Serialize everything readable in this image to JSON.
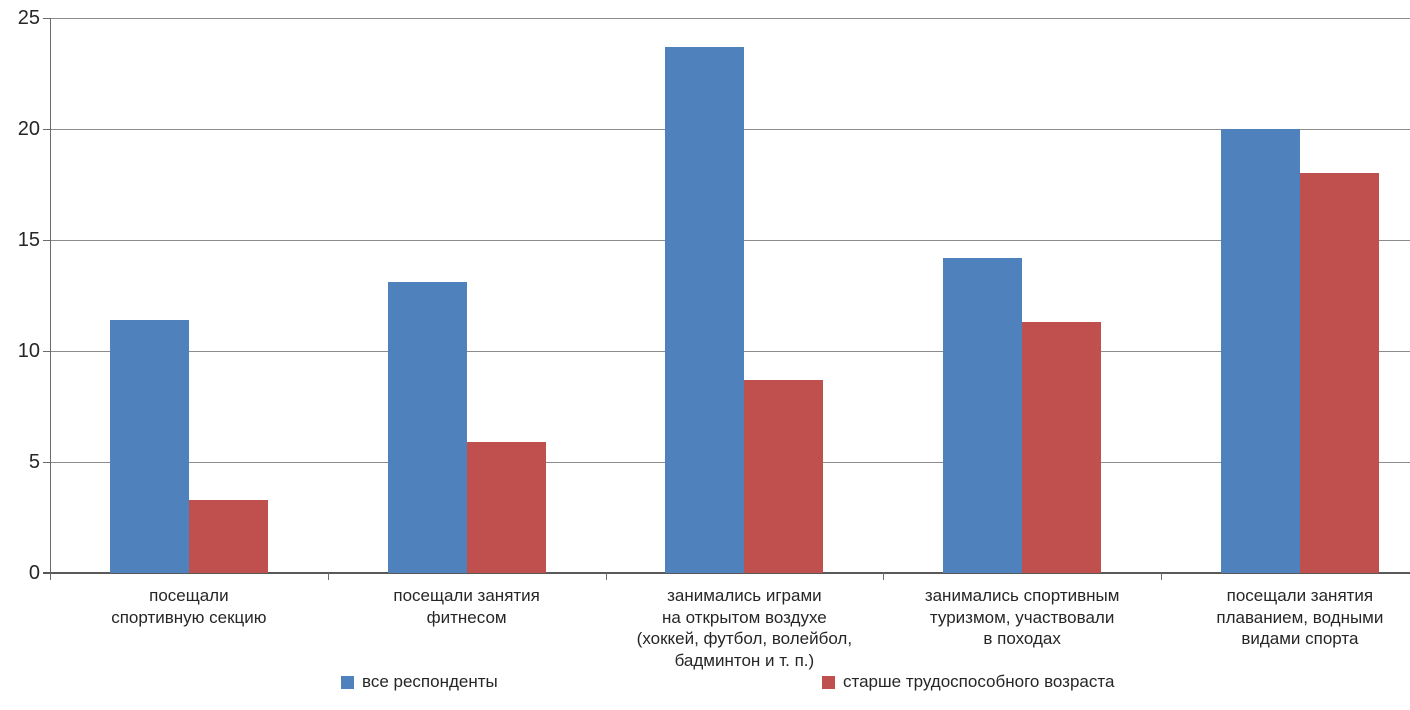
{
  "chart_data": {
    "type": "bar",
    "title": "",
    "xlabel": "",
    "ylabel": "",
    "categories": [
      "посещали\nспортивную секцию",
      "посещали занятия\nфитнесом",
      "занимались играми\nна открытом воздухе\n(хоккей, футбол, волейбол,\nбадминтон и т. п.)",
      "занимались спортивным\nтуризмом, участвовали\nв походах",
      "посещали занятия\nплаванием, водными\nвидами спорта"
    ],
    "series": [
      {
        "name": "все респонденты",
        "color": "#4F81BD",
        "values": [
          11.4,
          13.1,
          23.7,
          14.2,
          20
        ]
      },
      {
        "name": "старше трудоспособного возраста",
        "color": "#C0504D",
        "values": [
          3.3,
          5.9,
          8.7,
          11.3,
          18
        ]
      }
    ],
    "y_axis": {
      "min": 0,
      "max": 25,
      "tick_step": 5,
      "ticks": [
        0,
        5,
        10,
        15,
        20,
        25
      ]
    },
    "grid": true,
    "legend_position": "bottom",
    "colors": {
      "gridline": "#8C8C8C",
      "axis": "#6B6B6B",
      "baseline": "#595959",
      "text": "#262626"
    }
  }
}
